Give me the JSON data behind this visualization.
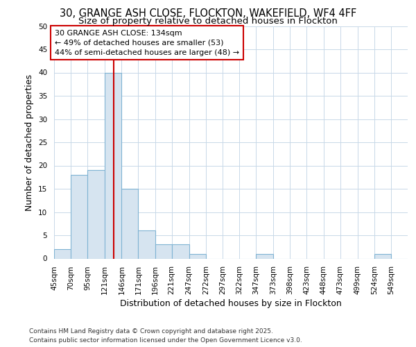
{
  "title1": "30, GRANGE ASH CLOSE, FLOCKTON, WAKEFIELD, WF4 4FF",
  "title2": "Size of property relative to detached houses in Flockton",
  "xlabel": "Distribution of detached houses by size in Flockton",
  "ylabel": "Number of detached properties",
  "bin_labels": [
    "45sqm",
    "70sqm",
    "95sqm",
    "121sqm",
    "146sqm",
    "171sqm",
    "196sqm",
    "221sqm",
    "247sqm",
    "272sqm",
    "297sqm",
    "322sqm",
    "347sqm",
    "373sqm",
    "398sqm",
    "423sqm",
    "448sqm",
    "473sqm",
    "499sqm",
    "524sqm",
    "549sqm"
  ],
  "bar_values": [
    2,
    18,
    19,
    40,
    15,
    6,
    3,
    3,
    1,
    0,
    0,
    0,
    1,
    0,
    0,
    0,
    0,
    0,
    0,
    1,
    0
  ],
  "bin_edges": [
    45,
    70,
    95,
    121,
    146,
    171,
    196,
    221,
    247,
    272,
    297,
    322,
    347,
    373,
    398,
    423,
    448,
    473,
    499,
    524,
    549,
    574
  ],
  "bar_color": "#d6e4f0",
  "bar_edge_color": "#7fb3d3",
  "red_line_x": 134,
  "red_line_color": "#cc0000",
  "annotation_box_color": "#ffffff",
  "annotation_border_color": "#cc0000",
  "annotation_text_line1": "30 GRANGE ASH CLOSE: 134sqm",
  "annotation_text_line2": "← 49% of detached houses are smaller (53)",
  "annotation_text_line3": "44% of semi-detached houses are larger (48) →",
  "ylim": [
    0,
    50
  ],
  "yticks": [
    0,
    5,
    10,
    15,
    20,
    25,
    30,
    35,
    40,
    45,
    50
  ],
  "footer_line1": "Contains HM Land Registry data © Crown copyright and database right 2025.",
  "footer_line2": "Contains public sector information licensed under the Open Government Licence v3.0.",
  "background_color": "#ffffff",
  "plot_bg_color": "#ffffff",
  "grid_color": "#c8d8e8",
  "title1_fontsize": 10.5,
  "title2_fontsize": 9.5,
  "axis_label_fontsize": 9,
  "tick_fontsize": 7.5,
  "annotation_fontsize": 8,
  "footer_fontsize": 6.5
}
